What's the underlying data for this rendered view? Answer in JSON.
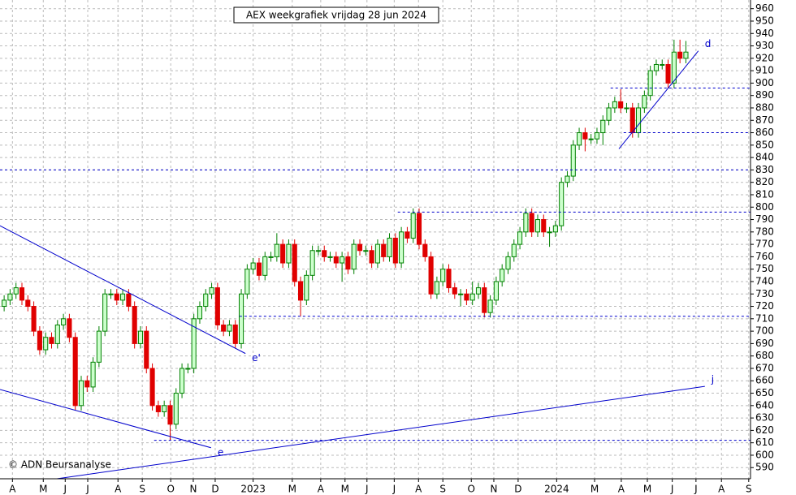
{
  "chart_data": {
    "type": "candlestick",
    "title": "AEX weekgrafiek vrijdag 28 jun 2024",
    "credit": "© ADN Beursanalyse",
    "xlim": [
      -0.7,
      125.9
    ],
    "ylim": [
      581,
      967
    ],
    "yticks": [
      590,
      600,
      610,
      620,
      630,
      640,
      650,
      660,
      670,
      680,
      690,
      700,
      710,
      720,
      730,
      740,
      750,
      760,
      770,
      780,
      790,
      800,
      810,
      820,
      830,
      840,
      850,
      860,
      870,
      880,
      890,
      900,
      910,
      920,
      930,
      940,
      950,
      960
    ],
    "xticks": [
      {
        "value": 1.4,
        "label": "A"
      },
      {
        "value": 6.6,
        "label": "M"
      },
      {
        "value": 10.3,
        "label": "J"
      },
      {
        "value": 14.1,
        "label": "J"
      },
      {
        "value": 19.2,
        "label": "A"
      },
      {
        "value": 23.3,
        "label": "S"
      },
      {
        "value": 28.1,
        "label": "O"
      },
      {
        "value": 31.9,
        "label": "N"
      },
      {
        "value": 35.6,
        "label": "D"
      },
      {
        "value": 42,
        "label": "2023"
      },
      {
        "value": 48.6,
        "label": "M"
      },
      {
        "value": 53.4,
        "label": "A"
      },
      {
        "value": 57.5,
        "label": "M"
      },
      {
        "value": 61.2,
        "label": "J"
      },
      {
        "value": 65.8,
        "label": "J"
      },
      {
        "value": 69.9,
        "label": "A"
      },
      {
        "value": 74,
        "label": "S"
      },
      {
        "value": 78.8,
        "label": "O"
      },
      {
        "value": 82.6,
        "label": "N"
      },
      {
        "value": 86.7,
        "label": "D"
      },
      {
        "value": 93.2,
        "label": "2024"
      },
      {
        "value": 99.6,
        "label": "M"
      },
      {
        "value": 104.1,
        "label": "A"
      },
      {
        "value": 108.5,
        "label": "M"
      },
      {
        "value": 112.7,
        "label": "J"
      },
      {
        "value": 116.7,
        "label": "J"
      },
      {
        "value": 121,
        "label": "A"
      },
      {
        "value": 125.6,
        "label": "S"
      }
    ],
    "grid": true,
    "up_color": "#008000",
    "down_color": "#e00000",
    "open": [
      720,
      725,
      730,
      735,
      725,
      720,
      700,
      685,
      695,
      690,
      705,
      710,
      695,
      640,
      660,
      655,
      675,
      700,
      730,
      730,
      725,
      730,
      720,
      690,
      700,
      670,
      640,
      635,
      640,
      625,
      650,
      670,
      670,
      710,
      720,
      730,
      735,
      705,
      700,
      705,
      690,
      730,
      750,
      755,
      745,
      760,
      760,
      770,
      755,
      770,
      740,
      725,
      745,
      765,
      765,
      760,
      760,
      755,
      760,
      750,
      770,
      765,
      765,
      755,
      770,
      760,
      775,
      755,
      780,
      775,
      795,
      770,
      760,
      730,
      740,
      750,
      735,
      730,
      730,
      725,
      730,
      735,
      715,
      725,
      740,
      750,
      760,
      770,
      780,
      795,
      780,
      790,
      780,
      780,
      785,
      820,
      825,
      850,
      860,
      855,
      855,
      860,
      870,
      880,
      885,
      880,
      880,
      860,
      880,
      890,
      910,
      915,
      915,
      900,
      925,
      920
    ],
    "high": [
      729,
      734,
      739,
      739,
      729,
      724,
      704,
      699,
      699,
      709,
      714,
      714,
      699,
      664,
      664,
      679,
      704,
      734,
      734,
      734,
      734,
      734,
      724,
      704,
      704,
      674,
      644,
      644,
      644,
      654,
      674,
      674,
      714,
      724,
      734,
      739,
      739,
      709,
      709,
      709,
      734,
      754,
      759,
      759,
      764,
      764,
      779,
      774,
      774,
      774,
      744,
      749,
      769,
      769,
      769,
      764,
      764,
      764,
      764,
      774,
      774,
      769,
      769,
      774,
      774,
      779,
      779,
      784,
      784,
      799,
      799,
      774,
      764,
      744,
      754,
      754,
      739,
      734,
      734,
      740,
      739,
      739,
      729,
      744,
      754,
      764,
      774,
      784,
      799,
      799,
      794,
      794,
      784,
      789,
      824,
      829,
      854,
      864,
      864,
      859,
      864,
      874,
      884,
      889,
      895,
      884,
      884,
      884,
      894,
      914,
      919,
      919,
      919,
      935,
      935,
      934
    ],
    "low": [
      716,
      721,
      726,
      721,
      716,
      696,
      681,
      681,
      686,
      686,
      701,
      691,
      636,
      636,
      651,
      651,
      671,
      696,
      726,
      721,
      721,
      716,
      686,
      686,
      666,
      636,
      631,
      631,
      612,
      621,
      646,
      666,
      666,
      706,
      716,
      726,
      701,
      696,
      696,
      686,
      686,
      726,
      746,
      741,
      741,
      756,
      756,
      751,
      751,
      736,
      712,
      721,
      741,
      761,
      756,
      756,
      751,
      740,
      746,
      746,
      761,
      761,
      751,
      751,
      756,
      756,
      751,
      751,
      771,
      771,
      766,
      756,
      726,
      726,
      736,
      731,
      726,
      720,
      721,
      721,
      726,
      711,
      711,
      721,
      736,
      746,
      756,
      766,
      776,
      776,
      776,
      776,
      768,
      776,
      781,
      816,
      821,
      846,
      845,
      851,
      851,
      850,
      866,
      876,
      876,
      876,
      856,
      856,
      876,
      886,
      906,
      911,
      896,
      896,
      916,
      916
    ],
    "close": [
      725,
      730,
      735,
      725,
      720,
      700,
      685,
      695,
      690,
      705,
      710,
      695,
      640,
      660,
      655,
      675,
      700,
      730,
      730,
      725,
      730,
      720,
      690,
      700,
      670,
      640,
      635,
      640,
      625,
      650,
      670,
      670,
      710,
      720,
      730,
      735,
      705,
      700,
      705,
      690,
      730,
      750,
      755,
      745,
      760,
      760,
      770,
      755,
      770,
      740,
      725,
      745,
      765,
      765,
      760,
      760,
      755,
      760,
      750,
      770,
      765,
      765,
      755,
      770,
      760,
      775,
      755,
      780,
      775,
      795,
      770,
      760,
      730,
      740,
      750,
      735,
      730,
      730,
      725,
      730,
      735,
      715,
      725,
      740,
      750,
      760,
      770,
      780,
      795,
      780,
      790,
      780,
      780,
      785,
      820,
      825,
      850,
      860,
      855,
      855,
      860,
      870,
      880,
      885,
      880,
      880,
      860,
      880,
      890,
      910,
      915,
      915,
      900,
      925,
      920,
      925
    ],
    "levels_color": "#0000cc",
    "levels": [
      {
        "value": 896,
        "from": 102.3
      },
      {
        "value": 860,
        "from": 104.5
      },
      {
        "value": 830,
        "from": -0.7
      },
      {
        "value": 796,
        "from": 66.4
      },
      {
        "value": 712,
        "from": 39.7
      },
      {
        "value": 612,
        "from": 25.3
      }
    ],
    "trendlines": [
      {
        "label": "d",
        "x": [
          103.7,
          117.1
        ],
        "y": [
          847,
          926
        ]
      },
      {
        "label": "j",
        "x": [
          8.9,
          118.2
        ],
        "y": [
          581,
          655.5
        ]
      },
      {
        "label": "e'",
        "x": [
          -0.7,
          40.7
        ],
        "y": [
          785,
          682
        ]
      },
      {
        "label": "e",
        "x": [
          -0.7,
          34.9
        ],
        "y": [
          653,
          606
        ]
      }
    ]
  }
}
